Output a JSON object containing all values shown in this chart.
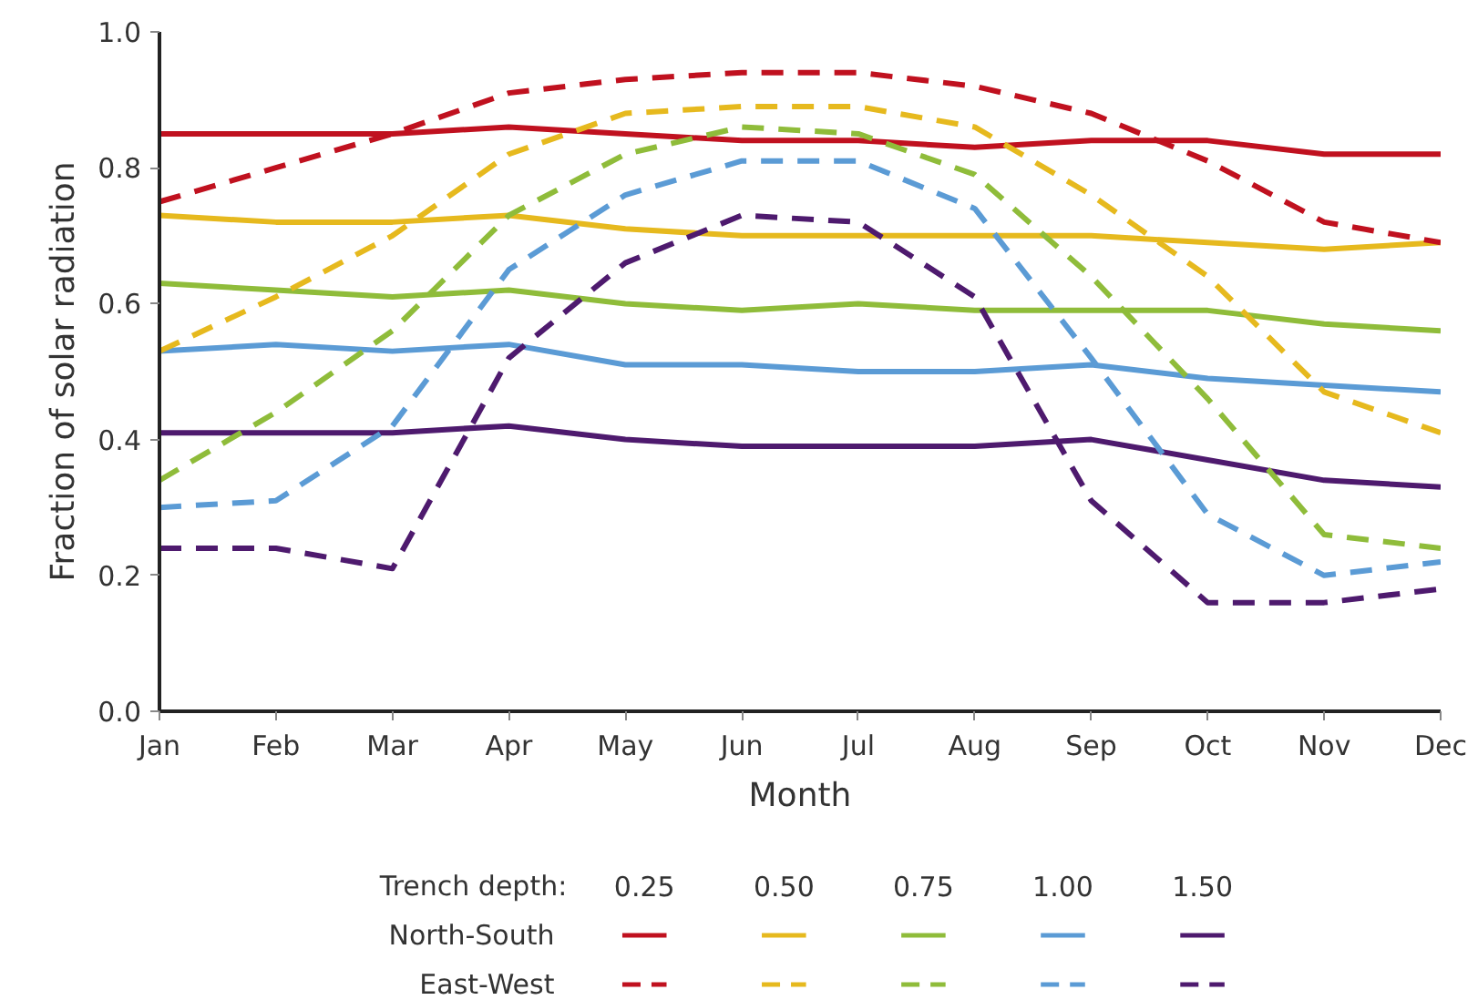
{
  "chart_data": {
    "type": "line",
    "xlabel": "Month",
    "ylabel": "Fraction of solar radiation",
    "categories": [
      "Jan",
      "Feb",
      "Mar",
      "Apr",
      "May",
      "Jun",
      "Jul",
      "Aug",
      "Sep",
      "Oct",
      "Nov",
      "Dec"
    ],
    "ylim": [
      0,
      1
    ],
    "yticks": [
      {
        "value": 0,
        "label": "0.0"
      },
      {
        "value": 0.2,
        "label": "0.2"
      },
      {
        "value": 0.4,
        "label": "0.4"
      },
      {
        "value": 0.6,
        "label": "0.6"
      },
      {
        "value": 0.8,
        "label": "0.8"
      },
      {
        "value": 1,
        "label": "1.0"
      }
    ],
    "grid": false,
    "legend_title": "Trench depth:",
    "marker": "none",
    "annotations": [
      "North-South",
      "East-West",
      "0.25",
      "0.50",
      "0.75",
      "1.00",
      "1.50"
    ],
    "series": [
      {
        "color": "#c0111f",
        "line_style": "solid",
        "values": [
          0.85,
          0.85,
          0.85,
          0.86,
          0.85,
          0.84,
          0.84,
          0.83,
          0.84,
          0.84,
          0.82,
          0.82
        ]
      },
      {
        "color": "#e6b91e",
        "line_style": "solid",
        "values": [
          0.73,
          0.72,
          0.72,
          0.73,
          0.71,
          0.7,
          0.7,
          0.7,
          0.7,
          0.69,
          0.68,
          0.69
        ]
      },
      {
        "color": "#8fbc3a",
        "line_style": "solid",
        "values": [
          0.63,
          0.62,
          0.61,
          0.62,
          0.6,
          0.59,
          0.6,
          0.59,
          0.59,
          0.59,
          0.57,
          0.56
        ]
      },
      {
        "color": "#5b9bd5",
        "line_style": "solid",
        "values": [
          0.53,
          0.54,
          0.53,
          0.54,
          0.51,
          0.51,
          0.5,
          0.5,
          0.51,
          0.49,
          0.48,
          0.47
        ]
      },
      {
        "color": "#4e1a6e",
        "line_style": "solid",
        "values": [
          0.41,
          0.41,
          0.41,
          0.42,
          0.4,
          0.39,
          0.39,
          0.39,
          0.4,
          0.37,
          0.34,
          0.33
        ]
      },
      {
        "color": "#c0111f",
        "line_style": "dashed",
        "values": [
          0.75,
          0.8,
          0.85,
          0.91,
          0.93,
          0.94,
          0.94,
          0.92,
          0.88,
          0.81,
          0.72,
          0.69
        ]
      },
      {
        "color": "#e6b91e",
        "line_style": "dashed",
        "values": [
          0.53,
          0.61,
          0.7,
          0.82,
          0.88,
          0.89,
          0.89,
          0.86,
          0.76,
          0.64,
          0.47,
          0.41
        ]
      },
      {
        "color": "#8fbc3a",
        "line_style": "dashed",
        "values": [
          0.34,
          0.44,
          0.56,
          0.73,
          0.82,
          0.86,
          0.85,
          0.79,
          0.64,
          0.46,
          0.26,
          0.24
        ]
      },
      {
        "color": "#5b9bd5",
        "line_style": "dashed",
        "values": [
          0.3,
          0.31,
          0.42,
          0.65,
          0.76,
          0.81,
          0.81,
          0.74,
          0.52,
          0.29,
          0.2,
          0.22
        ]
      },
      {
        "color": "#4e1a6e",
        "line_style": "dashed",
        "values": [
          0.24,
          0.24,
          0.21,
          0.52,
          0.66,
          0.73,
          0.72,
          0.61,
          0.31,
          0.16,
          0.16,
          0.18
        ]
      }
    ]
  }
}
